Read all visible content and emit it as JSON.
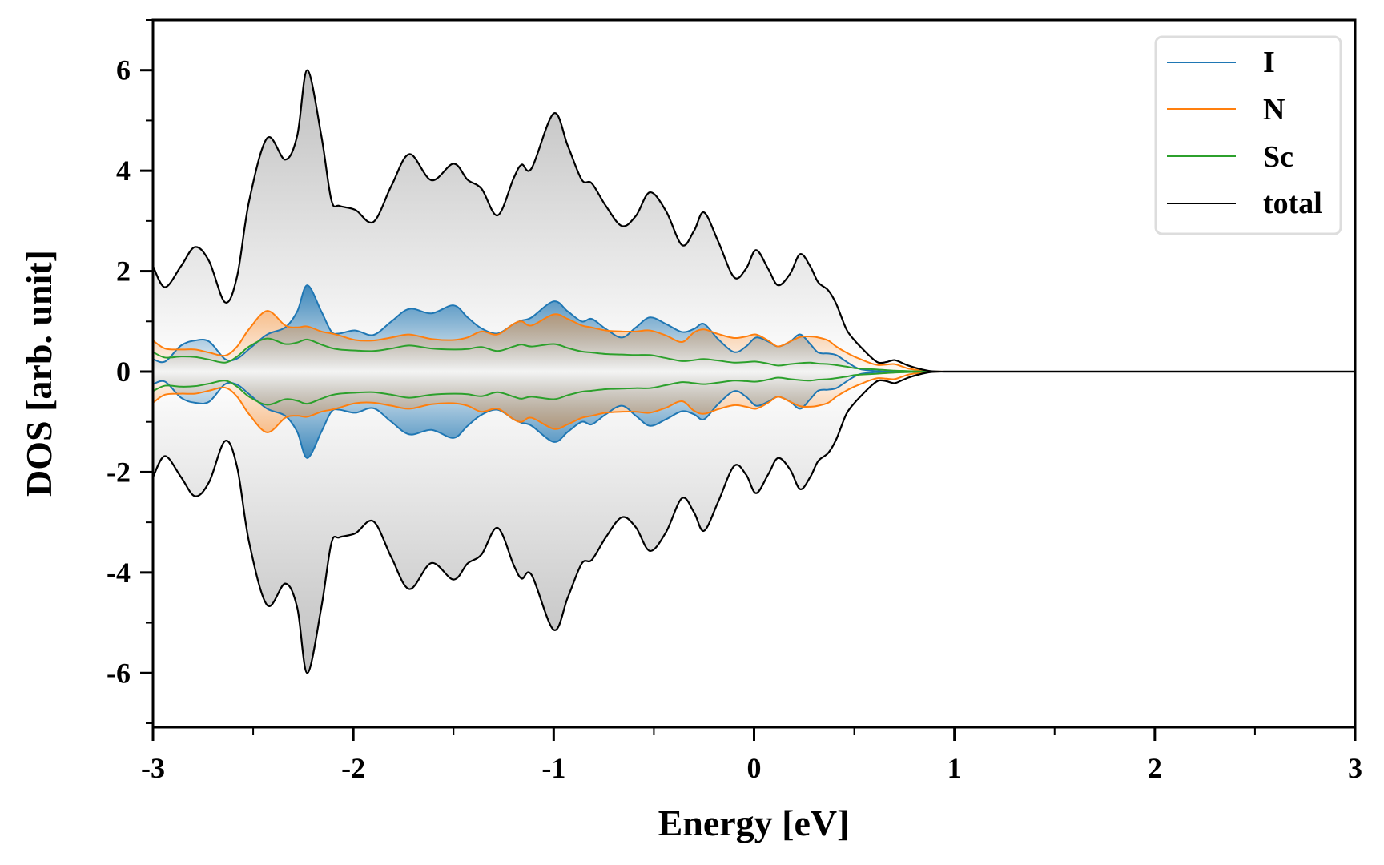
{
  "chart_data": {
    "type": "area",
    "title": "",
    "xlabel": "Energy [eV]",
    "ylabel": "DOS [arb. unit]",
    "xlim": [
      -3,
      3
    ],
    "ylim": [
      -7.08,
      7.0
    ],
    "xticks": [
      -3,
      -2,
      -1,
      0,
      1,
      2,
      3
    ],
    "xtick_labels": [
      "-3",
      "-2",
      "-1",
      "0",
      "1",
      "2",
      "3"
    ],
    "xminor_step": 0.5,
    "yticks": [
      -6,
      -4,
      -2,
      0,
      2,
      4,
      6
    ],
    "ytick_labels": [
      "-6",
      "-4",
      "-2",
      "0",
      "2",
      "4",
      "6"
    ],
    "yminor_step": 1,
    "grid": false,
    "legend_position": "top-right",
    "spin_down_mirrored": true,
    "x": [
      -3.0,
      -2.94,
      -2.86,
      -2.79,
      -2.72,
      -2.64,
      -2.58,
      -2.52,
      -2.43,
      -2.34,
      -2.28,
      -2.23,
      -2.16,
      -2.11,
      -2.07,
      -1.99,
      -1.9,
      -1.81,
      -1.72,
      -1.61,
      -1.5,
      -1.43,
      -1.36,
      -1.28,
      -1.2,
      -1.16,
      -1.11,
      -1.0,
      -0.93,
      -0.86,
      -0.81,
      -0.74,
      -0.66,
      -0.59,
      -0.52,
      -0.44,
      -0.36,
      -0.3,
      -0.25,
      -0.18,
      -0.1,
      -0.04,
      0.01,
      0.07,
      0.12,
      0.18,
      0.23,
      0.28,
      0.32,
      0.37,
      0.41,
      0.46,
      0.5,
      0.53,
      0.58,
      0.62,
      0.66,
      0.7,
      0.74,
      0.77,
      0.82,
      0.88,
      0.95,
      1.0,
      1.5,
      2.0,
      2.5,
      3.0
    ],
    "series": [
      {
        "name": "I",
        "color": "#1f77b4",
        "fill": true,
        "values": [
          0.25,
          0.2,
          0.52,
          0.62,
          0.6,
          0.25,
          0.26,
          0.45,
          0.74,
          0.88,
          1.2,
          1.72,
          1.2,
          0.8,
          0.76,
          0.82,
          0.73,
          1.0,
          1.25,
          1.16,
          1.32,
          1.08,
          0.86,
          0.76,
          0.95,
          1.02,
          1.08,
          1.4,
          1.2,
          1.0,
          1.05,
          0.85,
          0.68,
          0.88,
          1.08,
          0.95,
          0.79,
          0.85,
          0.95,
          0.65,
          0.39,
          0.5,
          0.68,
          0.6,
          0.5,
          0.6,
          0.74,
          0.55,
          0.38,
          0.36,
          0.33,
          0.2,
          0.1,
          0.05,
          0.02,
          0.01,
          0,
          0,
          0,
          0,
          0,
          0,
          0,
          0,
          0,
          0,
          0,
          0
        ]
      },
      {
        "name": "N",
        "color": "#ff7f0e",
        "fill": true,
        "values": [
          0.62,
          0.46,
          0.44,
          0.44,
          0.38,
          0.32,
          0.5,
          0.85,
          1.21,
          0.92,
          0.88,
          0.9,
          0.8,
          0.76,
          0.72,
          0.63,
          0.62,
          0.68,
          0.74,
          0.65,
          0.63,
          0.68,
          0.8,
          0.74,
          0.95,
          1.0,
          0.92,
          1.14,
          1.05,
          0.92,
          0.88,
          0.82,
          0.8,
          0.8,
          0.82,
          0.72,
          0.59,
          0.78,
          0.84,
          0.75,
          0.67,
          0.7,
          0.74,
          0.62,
          0.5,
          0.6,
          0.69,
          0.7,
          0.68,
          0.62,
          0.5,
          0.38,
          0.3,
          0.25,
          0.17,
          0.13,
          0.14,
          0.15,
          0.1,
          0.06,
          0.03,
          0,
          0,
          0,
          0,
          0,
          0,
          0
        ]
      },
      {
        "name": "Sc",
        "color": "#2ca02c",
        "fill": false,
        "values": [
          0.39,
          0.28,
          0.3,
          0.29,
          0.24,
          0.18,
          0.3,
          0.5,
          0.66,
          0.55,
          0.58,
          0.64,
          0.54,
          0.47,
          0.44,
          0.42,
          0.41,
          0.46,
          0.52,
          0.46,
          0.44,
          0.45,
          0.49,
          0.41,
          0.5,
          0.54,
          0.5,
          0.55,
          0.47,
          0.4,
          0.38,
          0.35,
          0.34,
          0.33,
          0.33,
          0.27,
          0.21,
          0.23,
          0.25,
          0.22,
          0.18,
          0.19,
          0.2,
          0.16,
          0.12,
          0.15,
          0.17,
          0.18,
          0.16,
          0.15,
          0.13,
          0.1,
          0.07,
          0.06,
          0.05,
          0.04,
          0.03,
          0.02,
          0.015,
          0.01,
          0.005,
          0,
          0,
          0,
          0,
          0,
          0,
          0
        ]
      },
      {
        "name": "total",
        "color": "#000000",
        "fill": true,
        "values": [
          2.1,
          1.68,
          2.1,
          2.48,
          2.2,
          1.38,
          1.9,
          3.4,
          4.65,
          4.22,
          4.7,
          6.0,
          4.7,
          3.42,
          3.3,
          3.22,
          2.98,
          3.7,
          4.33,
          3.81,
          4.14,
          3.82,
          3.64,
          3.11,
          3.85,
          4.12,
          4.05,
          5.14,
          4.5,
          3.82,
          3.75,
          3.3,
          2.9,
          3.1,
          3.57,
          3.2,
          2.52,
          2.8,
          3.17,
          2.6,
          1.88,
          2.05,
          2.42,
          2.05,
          1.72,
          1.95,
          2.34,
          2.1,
          1.78,
          1.62,
          1.35,
          0.85,
          0.63,
          0.5,
          0.3,
          0.18,
          0.19,
          0.23,
          0.17,
          0.12,
          0.06,
          0.01,
          0,
          0,
          0,
          0,
          0,
          0
        ]
      }
    ]
  },
  "legend": {
    "items": [
      {
        "label": "I",
        "color": "#1f77b4"
      },
      {
        "label": "N",
        "color": "#ff7f0e"
      },
      {
        "label": "Sc",
        "color": "#2ca02c"
      },
      {
        "label": "total",
        "color": "#000000"
      }
    ]
  }
}
